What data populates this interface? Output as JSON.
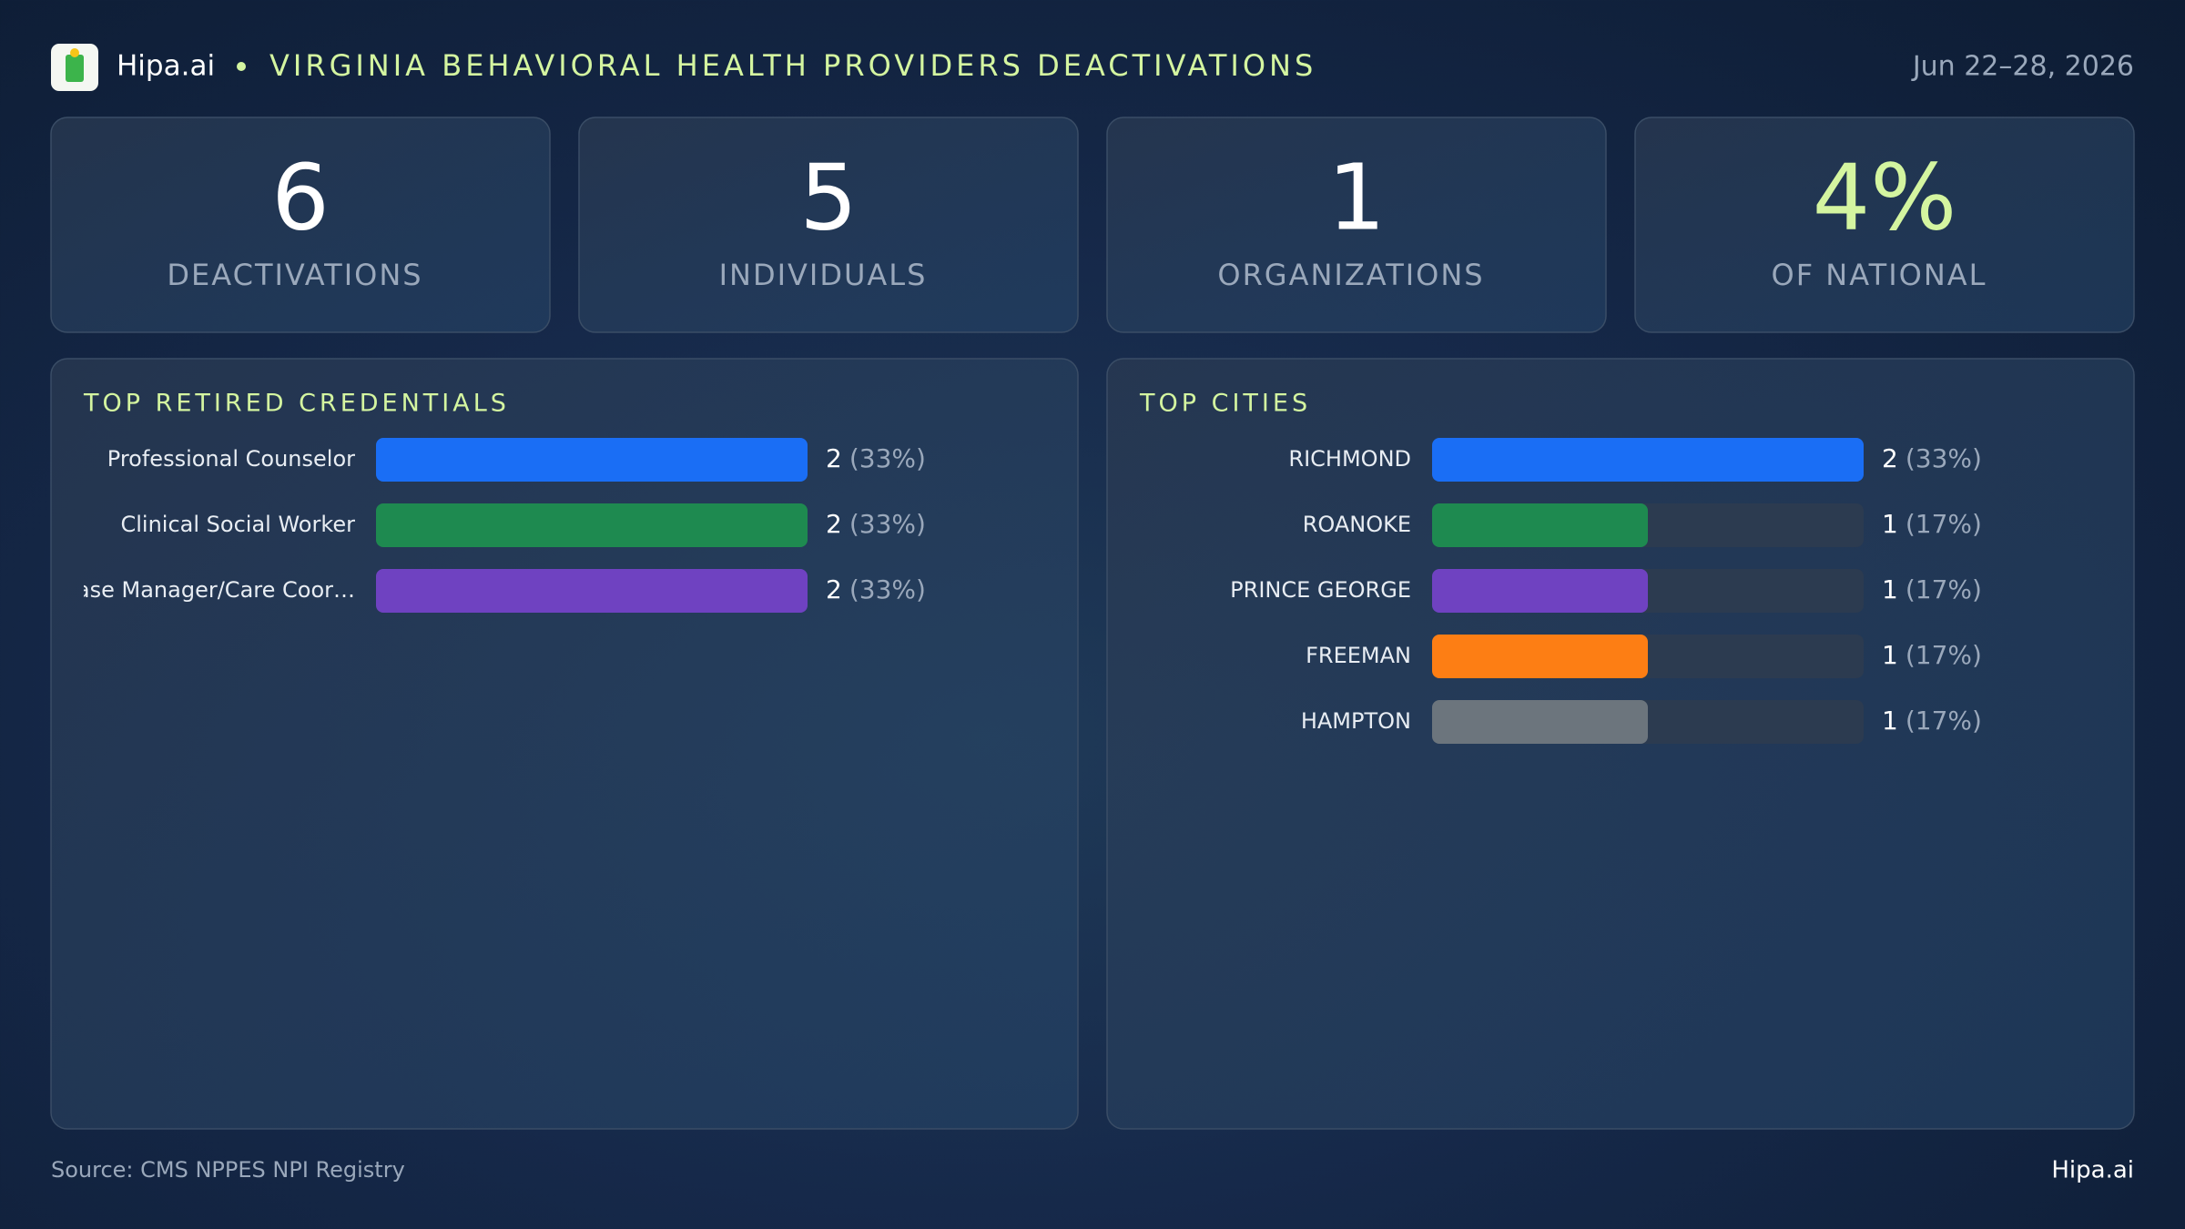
{
  "header": {
    "brand": "Hipa.ai",
    "title": "VIRGINIA BEHAVIORAL HEALTH PROVIDERS DEACTIVATIONS",
    "date": "Jun 22–28, 2026"
  },
  "kpis": [
    {
      "value": "6",
      "label": "DEACTIVATIONS"
    },
    {
      "value": "5",
      "label": "INDIVIDUALS"
    },
    {
      "value": "1",
      "label": "ORGANIZATIONS"
    },
    {
      "value": "4%",
      "label": "OF NATIONAL"
    }
  ],
  "chart_data": [
    {
      "type": "bar",
      "title": "TOP RETIRED CREDENTIALS",
      "categories": [
        "Professional Counselor",
        "Clinical Social Worker",
        "Case Manager/Care Coor…"
      ],
      "values": [
        2,
        2,
        2
      ],
      "percents": [
        33,
        33,
        33
      ],
      "percent_labels": [
        "(33%)",
        "(33%)",
        "(33%)"
      ],
      "colors": [
        "#1a6ef5",
        "#1e8a50",
        "#6f42c1"
      ],
      "xlim": [
        0,
        2
      ]
    },
    {
      "type": "bar",
      "title": "TOP CITIES",
      "categories": [
        "RICHMOND",
        "ROANOKE",
        "PRINCE GEORGE",
        "FREEMAN",
        "HAMPTON"
      ],
      "values": [
        2,
        1,
        1,
        1,
        1
      ],
      "percents": [
        33,
        17,
        17,
        17,
        17
      ],
      "percent_labels": [
        "(33%)",
        "(17%)",
        "(17%)",
        "(17%)",
        "(17%)"
      ],
      "colors": [
        "#1a6ef5",
        "#1e8a50",
        "#6f42c1",
        "#fd7e14",
        "#6c757d"
      ],
      "xlim": [
        0,
        2
      ]
    }
  ],
  "footer": {
    "source": "Source: CMS NPPES NPI Registry",
    "brand": "Hipa.ai"
  }
}
